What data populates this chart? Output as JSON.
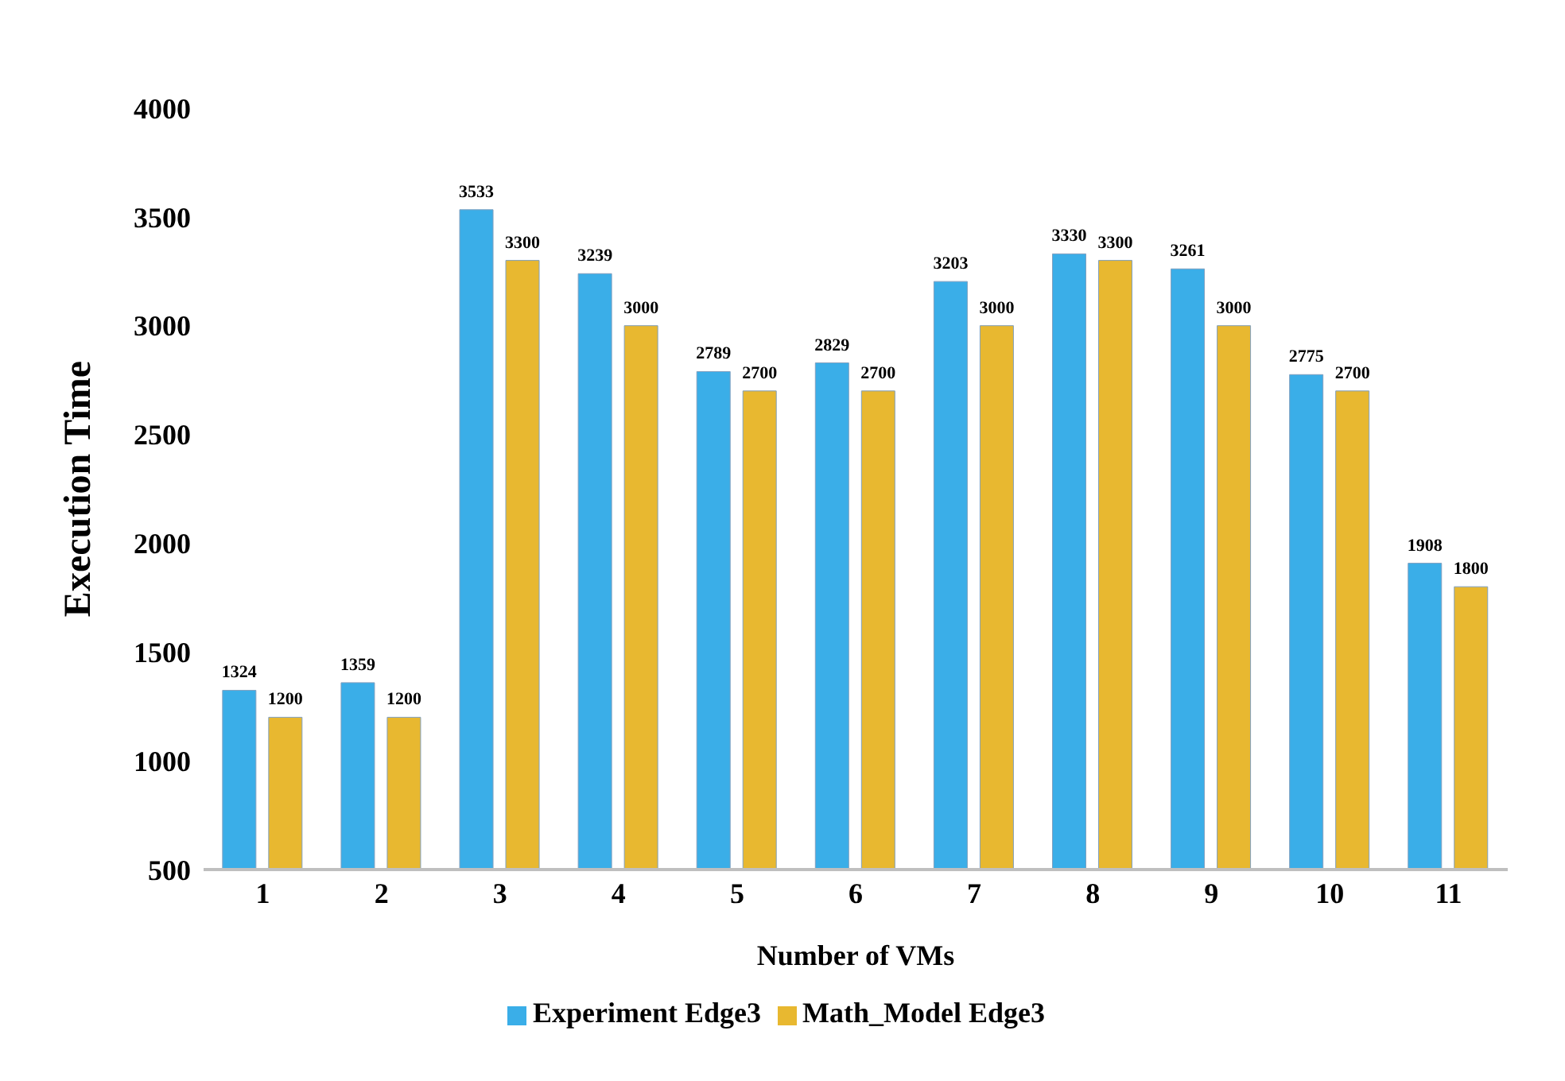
{
  "chart_data": {
    "type": "bar",
    "xlabel": "Number of VMs",
    "ylabel": "Execution Time",
    "categories": [
      "1",
      "2",
      "3",
      "4",
      "5",
      "6",
      "7",
      "8",
      "9",
      "10",
      "11"
    ],
    "series": [
      {
        "name": "Experiment Edge3",
        "color": "#3aaee8",
        "values": [
          1324,
          1359,
          3533,
          3239,
          2789,
          2829,
          3203,
          3330,
          3261,
          2775,
          1908
        ]
      },
      {
        "name": "Math_Model Edge3",
        "color": "#e8b830",
        "values": [
          1200,
          1200,
          3300,
          3000,
          2700,
          2700,
          3000,
          3300,
          3000,
          2700,
          1800
        ]
      }
    ],
    "ylim": [
      500,
      4000
    ],
    "yticks": [
      500,
      1000,
      1500,
      2000,
      2500,
      3000,
      3500,
      4000
    ],
    "grid": false,
    "legend": "bottom",
    "data_labels": true
  }
}
